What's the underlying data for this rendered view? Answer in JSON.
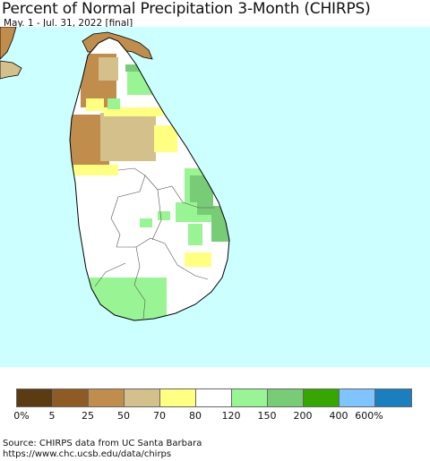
{
  "title": "Percent of Normal Precipitation 3-Month (CHIRPS)",
  "subtitle": "May. 1 - Jul. 31, 2022 [final]",
  "colors": {
    "ocean": "#ccffff",
    "land_default": "#ffffff",
    "coastline": "#000000",
    "border": "#555555"
  },
  "legend": {
    "bins": [
      {
        "label": "0-5%",
        "color": "#5a3b12"
      },
      {
        "label": "5-25%",
        "color": "#8f5b24"
      },
      {
        "label": "25-50%",
        "color": "#c08d4c"
      },
      {
        "label": "50-70%",
        "color": "#d4c08a"
      },
      {
        "label": "70-80%",
        "color": "#ffff80"
      },
      {
        "label": "80-120%",
        "color": "#ffffff"
      },
      {
        "label": "120-150%",
        "color": "#99f593"
      },
      {
        "label": "150-200%",
        "color": "#78cc76"
      },
      {
        "label": "200-400%",
        "color": "#35a700"
      },
      {
        "label": "400-600%",
        "color": "#80c4ff"
      },
      {
        "label": ">600%",
        "color": "#1a7fbf"
      }
    ],
    "ticks": [
      "0%",
      "5",
      "25",
      "50",
      "70",
      "80",
      "120",
      "150",
      "200",
      "400",
      "600%"
    ]
  },
  "footer": {
    "line1": "Source: CHIRPS data from UC Santa Barbara",
    "line2": "https://www.chc.ucsb.edu/data/chirps"
  }
}
